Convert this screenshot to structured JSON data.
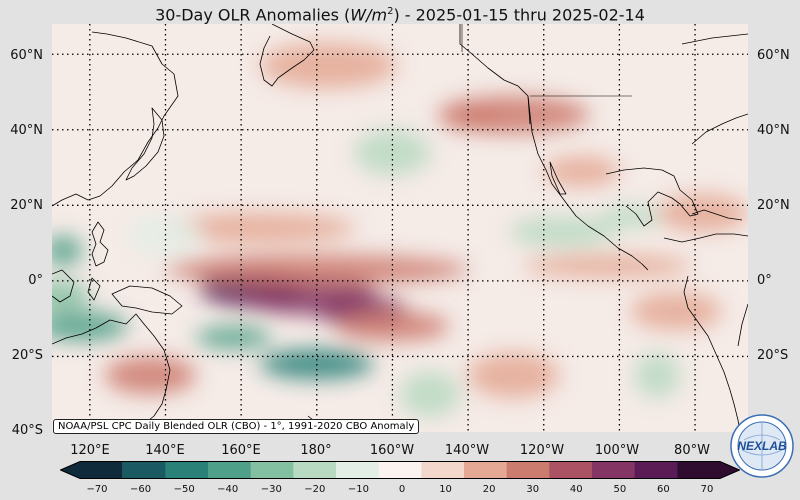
{
  "title": {
    "prefix": "30-Day OLR Anomalies (",
    "unit_base": "W/m",
    "unit_exp": "2",
    "suffix": ") - 2025-01-15 thru 2025-02-14"
  },
  "lat_labels": [
    "60°N",
    "40°N",
    "20°N",
    "0°",
    "20°S",
    "40°S"
  ],
  "lon_labels": [
    "120°E",
    "140°E",
    "160°E",
    "180°",
    "160°W",
    "140°W",
    "120°W",
    "100°W",
    "80°W"
  ],
  "credit": "NOAA/PSL CPC Daily Blended OLR (CBO) - 1°, 1991-2020 CBO Anomaly",
  "colorbar": {
    "ticks": [
      "−70",
      "−60",
      "−50",
      "−40",
      "−30",
      "−20",
      "−10",
      "0",
      "10",
      "20",
      "30",
      "40",
      "50",
      "60",
      "70"
    ],
    "min": -70,
    "max": 70,
    "colors": [
      "#0f2a3a",
      "#1a5b63",
      "#2a8178",
      "#4fa088",
      "#83c0a1",
      "#b8d9c2",
      "#e3eee6",
      "#faf3f0",
      "#f3d6cc",
      "#e4a894",
      "#cc7b6f",
      "#ab5364",
      "#843563",
      "#5b1c56",
      "#2e0d30"
    ]
  },
  "map": {
    "extent": {
      "lon_min": 110,
      "lon_max": 294,
      "lat_min": -40,
      "lat_max": 68
    },
    "anomaly_regions": [
      {
        "lon": 163,
        "lat": -2,
        "rx": 14,
        "ry": 5,
        "value": 55
      },
      {
        "lon": 178,
        "lat": -4,
        "rx": 18,
        "ry": 5,
        "value": 45
      },
      {
        "lon": 192,
        "lat": -8,
        "rx": 12,
        "ry": 4,
        "value": 45
      },
      {
        "lon": 180,
        "lat": 3,
        "rx": 40,
        "ry": 4,
        "value": 28
      },
      {
        "lon": 200,
        "lat": -12,
        "rx": 15,
        "ry": 4,
        "value": 30
      },
      {
        "lon": 165,
        "lat": 14,
        "rx": 25,
        "ry": 4,
        "value": 22
      },
      {
        "lon": 183,
        "lat": 57,
        "rx": 18,
        "ry": 6,
        "value": 15
      },
      {
        "lon": 232,
        "lat": 44,
        "rx": 20,
        "ry": 5,
        "value": 25
      },
      {
        "lon": 221,
        "lat": 43,
        "rx": 8,
        "ry": 3,
        "value": 25
      },
      {
        "lon": 250,
        "lat": 29,
        "rx": 10,
        "ry": 4,
        "value": 15
      },
      {
        "lon": 257,
        "lat": 4,
        "rx": 22,
        "ry": 3,
        "value": 20
      },
      {
        "lon": 282,
        "lat": 18,
        "rx": 12,
        "ry": 5,
        "value": 18
      },
      {
        "lon": 275,
        "lat": -8,
        "rx": 12,
        "ry": 5,
        "value": 15
      },
      {
        "lon": 232,
        "lat": -25,
        "rx": 12,
        "ry": 6,
        "value": 20
      },
      {
        "lon": 136,
        "lat": -25,
        "rx": 12,
        "ry": 5,
        "value": 25
      },
      {
        "lon": 112,
        "lat": -4,
        "rx": 8,
        "ry": 4,
        "value": -25
      },
      {
        "lon": 113,
        "lat": 8,
        "rx": 5,
        "ry": 4,
        "value": -40
      },
      {
        "lon": 118,
        "lat": -12,
        "rx": 12,
        "ry": 4,
        "value": -35
      },
      {
        "lon": 158,
        "lat": -15,
        "rx": 10,
        "ry": 3,
        "value": -35
      },
      {
        "lon": 180,
        "lat": -22,
        "rx": 15,
        "ry": 4,
        "value": -45
      },
      {
        "lon": 245,
        "lat": 13,
        "rx": 14,
        "ry": 4,
        "value": -22
      },
      {
        "lon": 263,
        "lat": 17,
        "rx": 8,
        "ry": 3,
        "value": -15
      },
      {
        "lon": 200,
        "lat": 34,
        "rx": 10,
        "ry": 6,
        "value": -15
      },
      {
        "lon": 210,
        "lat": -30,
        "rx": 8,
        "ry": 6,
        "value": -18
      },
      {
        "lon": 270,
        "lat": -25,
        "rx": 6,
        "ry": 6,
        "value": -15
      },
      {
        "lon": 140,
        "lat": 12,
        "rx": 10,
        "ry": 5,
        "value": -10
      }
    ]
  },
  "logo_text": "NEXLAB"
}
